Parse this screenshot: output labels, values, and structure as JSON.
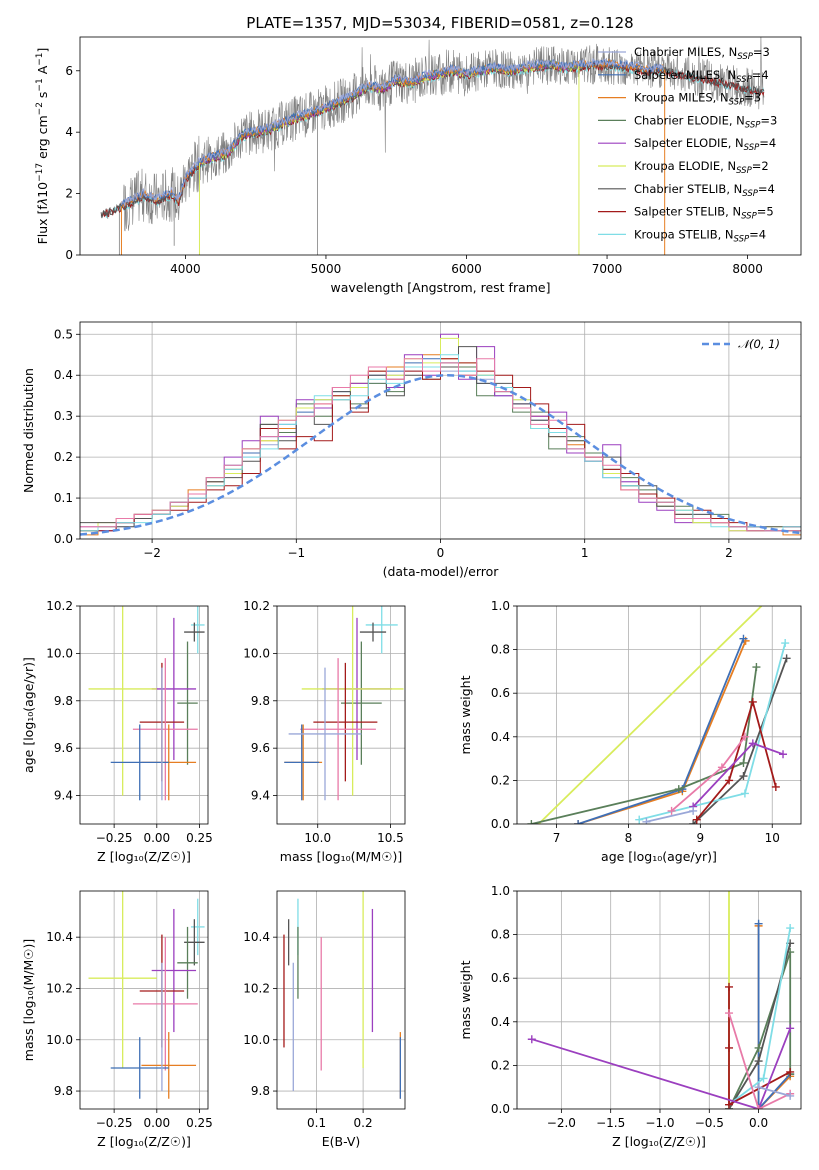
{
  "title": "PLATE=1357, MJD=53034, FIBERID=0581, z=0.128",
  "colors": {
    "Chabrier MILES": "#9aa7d8",
    "Salpeter MILES": "#3f6fb5",
    "Kroupa MILES": "#e67e22",
    "Chabrier ELODIE": "#5a7f5a",
    "Salpeter ELODIE": "#9b3fbf",
    "Kroupa ELODIE": "#d8ec5c",
    "Chabrier STELIB": "#555555",
    "Salpeter STELIB": "#a31a1a",
    "Kroupa STELIB": "#7fdde6",
    "Pink": "#e87aa8",
    "data": "#808080",
    "normal": "#5b8ee0"
  },
  "chart_data": [
    {
      "type": "line",
      "panel": "spectrum",
      "xlabel": "wavelength [Angstrom, rest frame]",
      "ylabel_html": "Flux [f<tspan font-style='italic'>λ</tspan>10<tspan dy='-5' font-size='9'>−17</tspan><tspan dy='5'> erg cm</tspan><tspan dy='-5' font-size='9'>−2</tspan><tspan dy='5'> s</tspan><tspan dy='-5' font-size='9'>−1</tspan><tspan dy='5'> A</tspan><tspan dy='-5' font-size='9'>−1</tspan><tspan dy='5'>]</tspan>",
      "xlim": [
        3250,
        8380
      ],
      "ylim": [
        0,
        7.1
      ],
      "xticks": [
        4000,
        5000,
        6000,
        7000,
        8000
      ],
      "yticks": [
        0,
        2,
        4,
        6
      ],
      "legend_position": "upper right",
      "legend": [
        {
          "label": "Chabrier MILES, N",
          "sub": "SSP",
          "suffix": "=3",
          "color": "Chabrier MILES"
        },
        {
          "label": "Salpeter MILES, N",
          "sub": "SSP",
          "suffix": "=4",
          "color": "Salpeter MILES"
        },
        {
          "label": "Kroupa MILES, N",
          "sub": "SSP",
          "suffix": "=3",
          "color": "Kroupa MILES"
        },
        {
          "label": "Chabrier ELODIE, N",
          "sub": "SSP",
          "suffix": "=3",
          "color": "Chabrier ELODIE"
        },
        {
          "label": "Salpeter ELODIE, N",
          "sub": "SSP",
          "suffix": "=4",
          "color": "Salpeter ELODIE"
        },
        {
          "label": "Kroupa ELODIE, N",
          "sub": "SSP",
          "suffix": "=2",
          "color": "Kroupa ELODIE"
        },
        {
          "label": "Chabrier STELIB, N",
          "sub": "SSP",
          "suffix": "=4",
          "color": "Chabrier STELIB"
        },
        {
          "label": "Salpeter STELIB, N",
          "sub": "SSP",
          "suffix": "=5",
          "color": "Salpeter STELIB"
        },
        {
          "label": "Kroupa STELIB, N",
          "sub": "SSP",
          "suffix": "=4",
          "color": "Kroupa STELIB"
        }
      ],
      "model_continuum": [
        [
          3400,
          1.35
        ],
        [
          3500,
          1.5
        ],
        [
          3600,
          1.7
        ],
        [
          3700,
          1.95
        ],
        [
          3800,
          1.8
        ],
        [
          3900,
          2.0
        ],
        [
          3950,
          1.75
        ],
        [
          4000,
          2.5
        ],
        [
          4100,
          3.0
        ],
        [
          4200,
          3.2
        ],
        [
          4300,
          3.3
        ],
        [
          4400,
          3.9
        ],
        [
          4500,
          4.0
        ],
        [
          4600,
          4.1
        ],
        [
          4700,
          4.3
        ],
        [
          4800,
          4.5
        ],
        [
          4900,
          4.6
        ],
        [
          5000,
          4.8
        ],
        [
          5100,
          5.0
        ],
        [
          5200,
          5.2
        ],
        [
          5300,
          5.5
        ],
        [
          5400,
          5.4
        ],
        [
          5500,
          5.7
        ],
        [
          5600,
          5.6
        ],
        [
          5700,
          5.8
        ],
        [
          5800,
          5.9
        ],
        [
          5900,
          6.0
        ],
        [
          6000,
          5.9
        ],
        [
          6100,
          6.0
        ],
        [
          6200,
          6.1
        ],
        [
          6300,
          6.0
        ],
        [
          6400,
          6.1
        ],
        [
          6500,
          6.15
        ],
        [
          6600,
          6.2
        ],
        [
          6700,
          6.1
        ],
        [
          6800,
          6.15
        ],
        [
          6900,
          6.2
        ],
        [
          7000,
          6.2
        ],
        [
          7100,
          6.15
        ],
        [
          7200,
          6.1
        ],
        [
          7300,
          6.0
        ],
        [
          7400,
          6.05
        ],
        [
          7500,
          5.95
        ],
        [
          7600,
          5.85
        ],
        [
          7700,
          5.75
        ],
        [
          7800,
          5.65
        ],
        [
          7900,
          5.55
        ],
        [
          8000,
          5.45
        ],
        [
          8100,
          5.38
        ]
      ]
    },
    {
      "type": "bar",
      "panel": "residual histogram",
      "xlabel": "(data-model)/error",
      "ylabel": "Normed distribution",
      "xlim": [
        -2.5,
        2.5
      ],
      "ylim": [
        0,
        0.53
      ],
      "xticks": [
        -2,
        -1,
        0,
        1,
        2
      ],
      "xtick_labels": [
        "−2",
        "−1",
        "0",
        "1",
        "2"
      ],
      "yticks": [
        0.0,
        0.1,
        0.2,
        0.3,
        0.4,
        0.5
      ],
      "ytick_labels": [
        "0.0",
        "0.1",
        "0.2",
        "0.3",
        "0.4",
        "0.5"
      ],
      "grid": true,
      "legend_position": "upper right",
      "reference_label": "𝒩(0, 1)"
    },
    {
      "type": "scatter",
      "panel": "age vs Z",
      "xlabel": "Z [log₁₀(Z/Z☉)]",
      "ylabel": "age  [log₁₀(age/yr)]",
      "xlim": [
        -0.45,
        0.3
      ],
      "ylim": [
        9.28,
        10.2
      ],
      "xticks": [
        -0.25,
        0.0,
        0.25
      ],
      "xtick_labels": [
        "−0.25",
        "0.00",
        "0.25"
      ],
      "yticks": [
        9.4,
        9.6,
        9.8,
        10.0,
        10.2
      ],
      "ytick_labels": [
        "9.4",
        "9.6",
        "9.8",
        "10.0",
        "10.2"
      ],
      "grid": true
    },
    {
      "type": "scatter",
      "panel": "age vs mass",
      "xlabel": "mass [log₁₀(M/M☉)]",
      "ylabel": "",
      "xlim": [
        9.72,
        10.6
      ],
      "ylim": [
        9.28,
        10.2
      ],
      "xticks": [
        10.0,
        10.5
      ],
      "xtick_labels": [
        "10.0",
        "10.5"
      ],
      "yticks": [
        9.4,
        9.6,
        9.8,
        10.0,
        10.2
      ],
      "ytick_labels": [
        "9.4",
        "9.6",
        "9.8",
        "10.0",
        "10.2"
      ],
      "grid": true
    },
    {
      "type": "line",
      "panel": "mass weight vs age",
      "xlabel": "age  [log₁₀(age/yr)]",
      "ylabel": "mass weight",
      "xlim": [
        6.45,
        10.4
      ],
      "ylim": [
        0,
        1.0
      ],
      "xticks": [
        7,
        8,
        9,
        10
      ],
      "xtick_labels": [
        "7",
        "8",
        "9",
        "10"
      ],
      "yticks": [
        0.0,
        0.2,
        0.4,
        0.6,
        0.8,
        1.0
      ],
      "ytick_labels": [
        "0.0",
        "0.2",
        "0.4",
        "0.6",
        "0.8",
        "1.0"
      ],
      "grid": true
    },
    {
      "type": "scatter",
      "panel": "mass vs Z",
      "xlabel": "Z [log₁₀(Z/Z☉)]",
      "ylabel": "mass [log₁₀(M/M☉)]",
      "xlim": [
        -0.45,
        0.3
      ],
      "ylim": [
        9.73,
        10.58
      ],
      "xticks": [
        -0.25,
        0.0,
        0.25
      ],
      "xtick_labels": [
        "−0.25",
        "0.00",
        "0.25"
      ],
      "yticks": [
        9.8,
        10.0,
        10.2,
        10.4
      ],
      "ytick_labels": [
        "9.8",
        "10.0",
        "10.2",
        "10.4"
      ],
      "grid": true
    },
    {
      "type": "scatter",
      "panel": "mass vs E(B-V)",
      "xlabel": "E(B-V)",
      "ylabel": "",
      "xlim": [
        0.015,
        0.29
      ],
      "ylim": [
        9.73,
        10.58
      ],
      "xticks": [
        0.1,
        0.2
      ],
      "xtick_labels": [
        "0.1",
        "0.2"
      ],
      "yticks": [
        9.8,
        10.0,
        10.2,
        10.4
      ],
      "ytick_labels": [
        "9.8",
        "10.0",
        "10.2",
        "10.4"
      ],
      "grid": true
    },
    {
      "type": "line",
      "panel": "mass weight vs Z",
      "xlabel": "Z [log₁₀(Z/Z☉)]",
      "ylabel": "mass weight",
      "xlim": [
        -2.45,
        0.43
      ],
      "ylim": [
        0,
        1.0
      ],
      "xticks": [
        -2.0,
        -1.5,
        -1.0,
        -0.5,
        0.0
      ],
      "xtick_labels": [
        "−2.0",
        "−1.5",
        "−1.0",
        "−0.5",
        "0.0"
      ],
      "yticks": [
        0.0,
        0.2,
        0.4,
        0.6,
        0.8,
        1.0
      ],
      "ytick_labels": [
        "0.0",
        "0.2",
        "0.4",
        "0.6",
        "0.8",
        "1.0"
      ],
      "grid": true
    }
  ],
  "histograms": {
    "Chabrier MILES": [
      0.02,
      0.03,
      0.03,
      0.05,
      0.06,
      0.08,
      0.1,
      0.13,
      0.16,
      0.2,
      0.23,
      0.27,
      0.3,
      0.32,
      0.35,
      0.37,
      0.38,
      0.4,
      0.41,
      0.42,
      0.41,
      0.4,
      0.39,
      0.36,
      0.34,
      0.3,
      0.27,
      0.24,
      0.2,
      0.17,
      0.14,
      0.11,
      0.09,
      0.07,
      0.06,
      0.04,
      0.03,
      0.03,
      0.02,
      0.02
    ],
    "Salpeter MILES": [
      0.02,
      0.02,
      0.04,
      0.05,
      0.07,
      0.09,
      0.11,
      0.14,
      0.18,
      0.21,
      0.25,
      0.28,
      0.31,
      0.34,
      0.36,
      0.38,
      0.4,
      0.41,
      0.43,
      0.44,
      0.43,
      0.41,
      0.38,
      0.35,
      0.33,
      0.29,
      0.26,
      0.22,
      0.19,
      0.15,
      0.13,
      0.1,
      0.08,
      0.06,
      0.05,
      0.04,
      0.03,
      0.02,
      0.02,
      0.02
    ],
    "Kroupa MILES": [
      0.01,
      0.03,
      0.04,
      0.05,
      0.06,
      0.09,
      0.12,
      0.14,
      0.17,
      0.22,
      0.24,
      0.27,
      0.32,
      0.33,
      0.37,
      0.38,
      0.41,
      0.42,
      0.42,
      0.45,
      0.44,
      0.4,
      0.4,
      0.37,
      0.32,
      0.3,
      0.25,
      0.23,
      0.19,
      0.16,
      0.12,
      0.1,
      0.09,
      0.06,
      0.05,
      0.04,
      0.03,
      0.02,
      0.02,
      0.01
    ],
    "Chabrier ELODIE": [
      0.02,
      0.03,
      0.04,
      0.06,
      0.07,
      0.09,
      0.11,
      0.15,
      0.17,
      0.22,
      0.28,
      0.26,
      0.33,
      0.3,
      0.34,
      0.33,
      0.38,
      0.36,
      0.42,
      0.39,
      0.43,
      0.42,
      0.35,
      0.36,
      0.31,
      0.31,
      0.22,
      0.25,
      0.21,
      0.17,
      0.15,
      0.12,
      0.09,
      0.08,
      0.04,
      0.06,
      0.03,
      0.03,
      0.02,
      0.03
    ],
    "Salpeter ELODIE": [
      0.03,
      0.02,
      0.04,
      0.05,
      0.06,
      0.08,
      0.1,
      0.13,
      0.2,
      0.24,
      0.3,
      0.25,
      0.34,
      0.32,
      0.37,
      0.38,
      0.41,
      0.37,
      0.45,
      0.4,
      0.5,
      0.39,
      0.47,
      0.35,
      0.33,
      0.3,
      0.31,
      0.21,
      0.19,
      0.23,
      0.14,
      0.09,
      0.07,
      0.04,
      0.05,
      0.04,
      0.02,
      0.03,
      0.02,
      0.03
    ],
    "Kroupa ELODIE": [
      0.02,
      0.04,
      0.05,
      0.05,
      0.07,
      0.08,
      0.11,
      0.13,
      0.16,
      0.22,
      0.24,
      0.29,
      0.32,
      0.34,
      0.35,
      0.37,
      0.41,
      0.4,
      0.44,
      0.43,
      0.49,
      0.43,
      0.4,
      0.37,
      0.34,
      0.27,
      0.26,
      0.24,
      0.2,
      0.16,
      0.13,
      0.11,
      0.08,
      0.07,
      0.04,
      0.04,
      0.02,
      0.02,
      0.03,
      0.02
    ],
    "Chabrier STELIB": [
      0.04,
      0.04,
      0.03,
      0.05,
      0.06,
      0.09,
      0.1,
      0.14,
      0.15,
      0.19,
      0.28,
      0.24,
      0.3,
      0.28,
      0.36,
      0.32,
      0.4,
      0.35,
      0.4,
      0.42,
      0.42,
      0.47,
      0.38,
      0.38,
      0.33,
      0.29,
      0.25,
      0.24,
      0.2,
      0.2,
      0.13,
      0.13,
      0.08,
      0.06,
      0.06,
      0.05,
      0.03,
      0.02,
      0.03,
      0.02
    ],
    "Salpeter STELIB": [
      0.02,
      0.02,
      0.04,
      0.06,
      0.06,
      0.07,
      0.09,
      0.12,
      0.13,
      0.16,
      0.27,
      0.22,
      0.25,
      0.24,
      0.35,
      0.31,
      0.41,
      0.39,
      0.41,
      0.39,
      0.44,
      0.43,
      0.41,
      0.4,
      0.37,
      0.33,
      0.27,
      0.28,
      0.2,
      0.17,
      0.16,
      0.11,
      0.1,
      0.05,
      0.07,
      0.05,
      0.04,
      0.03,
      0.02,
      0.03
    ],
    "Kroupa STELIB": [
      0.02,
      0.03,
      0.04,
      0.04,
      0.06,
      0.09,
      0.1,
      0.13,
      0.17,
      0.2,
      0.22,
      0.28,
      0.3,
      0.35,
      0.34,
      0.35,
      0.39,
      0.38,
      0.42,
      0.42,
      0.45,
      0.41,
      0.4,
      0.37,
      0.32,
      0.27,
      0.26,
      0.22,
      0.19,
      0.15,
      0.13,
      0.1,
      0.09,
      0.07,
      0.05,
      0.03,
      0.03,
      0.03,
      0.02,
      0.03
    ],
    "Pink": [
      0.03,
      0.03,
      0.05,
      0.06,
      0.07,
      0.09,
      0.11,
      0.15,
      0.18,
      0.22,
      0.25,
      0.29,
      0.3,
      0.33,
      0.37,
      0.4,
      0.42,
      0.39,
      0.44,
      0.41,
      0.43,
      0.4,
      0.44,
      0.36,
      0.32,
      0.28,
      0.29,
      0.22,
      0.2,
      0.18,
      0.12,
      0.1,
      0.09,
      0.05,
      0.05,
      0.04,
      0.03,
      0.02,
      0.02,
      0.02
    ]
  },
  "estimates": [
    {
      "color": "Kroupa STELIB",
      "Z": 0.24,
      "Zerr": 0.04,
      "age": 10.12,
      "ageerr": 0.12,
      "mass": 10.44,
      "masserr": 0.11,
      "ebv": 0.06,
      "ebverr": 0.0
    },
    {
      "color": "Chabrier STELIB",
      "Z": 0.22,
      "Zerr": 0.06,
      "age": 10.09,
      "ageerr": 0.04,
      "mass": 10.38,
      "masserr": 0.09,
      "ebv": 0.04,
      "ebverr": 0.0
    },
    {
      "color": "Chabrier ELODIE",
      "Z": 0.18,
      "Zerr": 0.06,
      "age": 9.79,
      "ageerr": 0.26,
      "mass": 10.3,
      "masserr": 0.14,
      "ebv": 0.06,
      "ebverr": 0.0
    },
    {
      "color": "Salpeter ELODIE",
      "Z": 0.1,
      "Zerr": 0.13,
      "age": 9.85,
      "ageerr": 0.3,
      "mass": 10.27,
      "masserr": 0.24,
      "ebv": 0.22,
      "ebverr": 0.0
    },
    {
      "color": "Kroupa ELODIE",
      "Z": -0.2,
      "Zerr": 0.2,
      "age": 9.85,
      "ageerr": 0.45,
      "mass": 10.24,
      "masserr": 0.35,
      "ebv": 0.2,
      "ebverr": 0.0
    },
    {
      "color": "Salpeter STELIB",
      "Z": 0.03,
      "Zerr": 0.13,
      "age": 9.71,
      "ageerr": 0.25,
      "mass": 10.19,
      "masserr": 0.22,
      "ebv": 0.03,
      "ebverr": 0.0
    },
    {
      "color": "Pink",
      "Z": 0.05,
      "Zerr": 0.19,
      "age": 9.68,
      "ageerr": 0.3,
      "mass": 10.14,
      "masserr": 0.26,
      "ebv": 0.11,
      "ebverr": 0.0
    },
    {
      "color": "Kroupa MILES",
      "Z": 0.07,
      "Zerr": 0.16,
      "age": 9.54,
      "ageerr": 0.16,
      "mass": 9.9,
      "masserr": 0.13,
      "ebv": 0.28,
      "ebverr": 0.0
    },
    {
      "color": "Salpeter MILES",
      "Z": -0.1,
      "Zerr": 0.17,
      "age": 9.54,
      "ageerr": 0.16,
      "mass": 9.89,
      "masserr": 0.12,
      "ebv": 0.28,
      "ebverr": 0.0
    },
    {
      "color": "Chabrier MILES",
      "Z": 0.03,
      "Zerr": 0.0,
      "age": 9.66,
      "ageerr": 0.28,
      "mass": 10.05,
      "masserr": 0.25,
      "ebv": 0.05,
      "ebverr": 0.0
    }
  ],
  "weight_tracks": [
    {
      "color": "Kroupa ELODIE",
      "age": [
        6.75,
        9.85
      ],
      "w": [
        0.0,
        1.0
      ],
      "Z": [
        -0.3,
        -0.3
      ],
      "zw": [
        1.0,
        0.0
      ],
      "marker": false
    },
    {
      "color": "Kroupa MILES",
      "age": [
        7.3,
        8.75,
        9.63
      ],
      "w": [
        0.0,
        0.15,
        0.84
      ],
      "Z": [
        0.0,
        0.0,
        0.32
      ],
      "zw": [
        0.84,
        0.0,
        0.15
      ]
    },
    {
      "color": "Salpeter MILES",
      "age": [
        7.3,
        8.75,
        9.6
      ],
      "w": [
        0.0,
        0.16,
        0.85
      ],
      "Z": [
        0.0,
        0.0,
        0.32
      ],
      "zw": [
        0.85,
        0.0,
        0.16
      ]
    },
    {
      "color": "Chabrier ELODIE",
      "age": [
        6.65,
        8.7,
        9.6,
        9.78
      ],
      "w": [
        0.0,
        0.16,
        0.28,
        0.72
      ],
      "Z": [
        -0.3,
        0.0,
        0.32,
        0.32
      ],
      "zw": [
        0.0,
        0.28,
        0.72,
        0.16
      ]
    },
    {
      "color": "Chabrier STELIB",
      "age": [
        8.9,
        9.6,
        10.2
      ],
      "w": [
        0.0,
        0.22,
        0.76
      ],
      "Z": [
        -0.3,
        0.0,
        0.32
      ],
      "zw": [
        0.0,
        0.22,
        0.76
      ]
    },
    {
      "color": "Kroupa STELIB",
      "age": [
        8.15,
        9.62,
        10.18
      ],
      "w": [
        0.02,
        0.14,
        0.83
      ],
      "Z": [
        -0.3,
        0.05,
        0.32
      ],
      "zw": [
        0.02,
        0.14,
        0.83
      ]
    },
    {
      "color": "Salpeter STELIB",
      "age": [
        8.95,
        9.4,
        9.73,
        10.05
      ],
      "w": [
        0.02,
        0.2,
        0.56,
        0.17
      ],
      "Z": [
        -0.3,
        -0.3,
        -0.3,
        0.32
      ],
      "zw": [
        0.56,
        0.28,
        0.02,
        0.17
      ]
    },
    {
      "color": "Salpeter ELODIE",
      "age": [
        8.9,
        9.73,
        10.15
      ],
      "w": [
        0.08,
        0.37,
        0.32
      ],
      "Z": [
        -2.3,
        0.0,
        0.32
      ],
      "zw": [
        0.32,
        0.0,
        0.37
      ]
    },
    {
      "color": "Pink",
      "age": [
        8.6,
        9.3,
        9.62
      ],
      "w": [
        0.06,
        0.26,
        0.4
      ],
      "Z": [
        -0.3,
        0.0,
        0.32
      ],
      "zw": [
        0.44,
        0.0,
        0.07
      ]
    },
    {
      "color": "Chabrier MILES",
      "age": [
        8.25,
        8.9
      ],
      "w": [
        0.01,
        0.06
      ],
      "Z": [
        0.0,
        0.32
      ],
      "zw": [
        0.1,
        0.06
      ]
    }
  ]
}
